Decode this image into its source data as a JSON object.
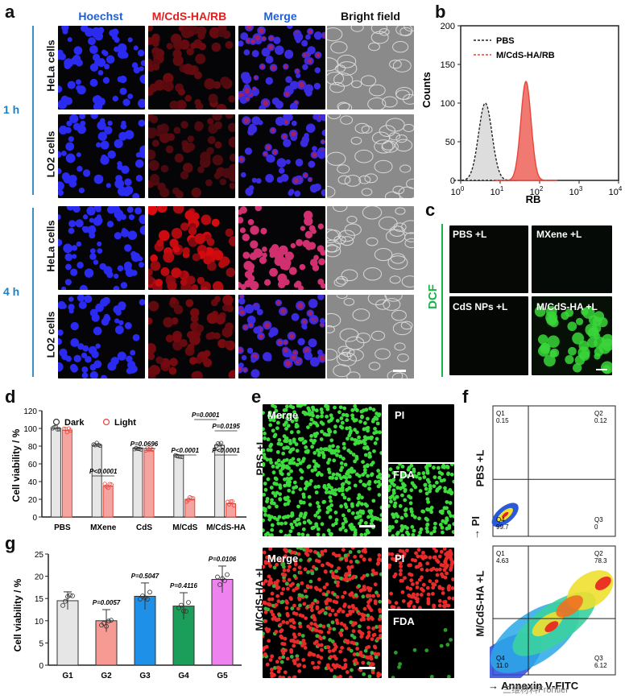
{
  "panels": {
    "a": "a",
    "b": "b",
    "c": "c",
    "d": "d",
    "e": "e",
    "f": "f",
    "g": "g"
  },
  "a": {
    "columns": [
      "Hoechst",
      "M/CdS-HA/RB",
      "Merge",
      "Bright field"
    ],
    "column_colors": [
      "#1f5fd6",
      "#e02020",
      "#1f5fd6",
      "#111111"
    ],
    "times": [
      "1 h",
      "4 h"
    ],
    "rows": [
      "HeLa cells",
      "LO2 cells",
      "HeLa cells",
      "LO2 cells"
    ]
  },
  "c": {
    "side_label": "DCF",
    "tiles": [
      "PBS +L",
      "MXene +L",
      "CdS NPs +L",
      "M/CdS-HA +L"
    ]
  },
  "e": {
    "rows": [
      "PBS +L",
      "M/CdS-HA +L"
    ],
    "merge": "Merge",
    "pi": "PI",
    "fda": "FDA"
  },
  "f": {
    "rows": [
      "PBS +L",
      "M/CdS-HA +L"
    ],
    "y_axis": "PI",
    "x_axis": "Annexin V-FITC",
    "plots": [
      {
        "q1": "Q1",
        "q1v": "0.15",
        "q2": "Q2",
        "q2v": "0.12",
        "q3": "Q3",
        "q3v": "0",
        "q4": "Q4",
        "q4v": "99.7"
      },
      {
        "q1": "Q1",
        "q1v": "4.63",
        "q2": "Q2",
        "q2v": "78.3",
        "q3": "Q3",
        "q3v": "6.12",
        "q4": "Q4",
        "q4v": "11.0"
      }
    ]
  },
  "watermark": "三维材料Frontier",
  "chart_data": [
    {
      "id": "b",
      "type": "area",
      "xlabel": "RB",
      "ylabel": "Counts",
      "xscale": "log",
      "xticks": [
        "10^0",
        "10^1",
        "10^2",
        "10^3",
        "10^4"
      ],
      "xtick_base": "10",
      "xtick_exp": [
        "0",
        "1",
        "2",
        "3",
        "4"
      ],
      "yticks": [
        "0",
        "50",
        "100",
        "150",
        "200"
      ],
      "ylim": [
        0,
        200
      ],
      "xlim": [
        1,
        10000
      ],
      "series": [
        {
          "name": "PBS",
          "peak_x": 4.2,
          "peak_y": 100,
          "color": "#222222",
          "fill": "#dddddd"
        },
        {
          "name": "M/CdS-HA/RB",
          "peak_x": 45,
          "peak_y": 128,
          "color": "#e8453c",
          "fill": "#f07a72"
        }
      ]
    },
    {
      "id": "d",
      "type": "bar",
      "ylabel": "Cell viability / %",
      "ylim": [
        0,
        120
      ],
      "yticks": [
        "0",
        "20",
        "40",
        "60",
        "80",
        "100",
        "120"
      ],
      "categories": [
        "PBS",
        "MXene",
        "CdS",
        "M/CdS",
        "M/CdS-HA"
      ],
      "series": [
        {
          "name": "Dark",
          "values": [
            100,
            81,
            78,
            70,
            81
          ],
          "color": "#e6e6e6"
        },
        {
          "name": "Light",
          "values": [
            98,
            35,
            75,
            20,
            15
          ],
          "color": "#f4a5a0"
        }
      ],
      "annotations": [
        "P<0.0001",
        "P=0.0696",
        "P<0.0001",
        "P<0.0001",
        "P=0.0001",
        "P=0.0195"
      ]
    },
    {
      "id": "g",
      "type": "bar",
      "ylabel": "Cell viability / %",
      "ylim": [
        0,
        25
      ],
      "yticks": [
        "0",
        "5",
        "10",
        "15",
        "20",
        "25"
      ],
      "categories": [
        "G1",
        "G2",
        "G3",
        "G4",
        "G5"
      ],
      "values": [
        14.5,
        10,
        15.5,
        13.3,
        19.3
      ],
      "errors": [
        2,
        2.5,
        3,
        3,
        3
      ],
      "colors": [
        "#e6e6e6",
        "#f79a94",
        "#1e90e8",
        "#1a9e5a",
        "#ee82ee"
      ],
      "annotations": [
        "",
        "P=0.0057",
        "P=0.5047",
        "P=0.4116",
        "P=0.0106"
      ]
    }
  ]
}
